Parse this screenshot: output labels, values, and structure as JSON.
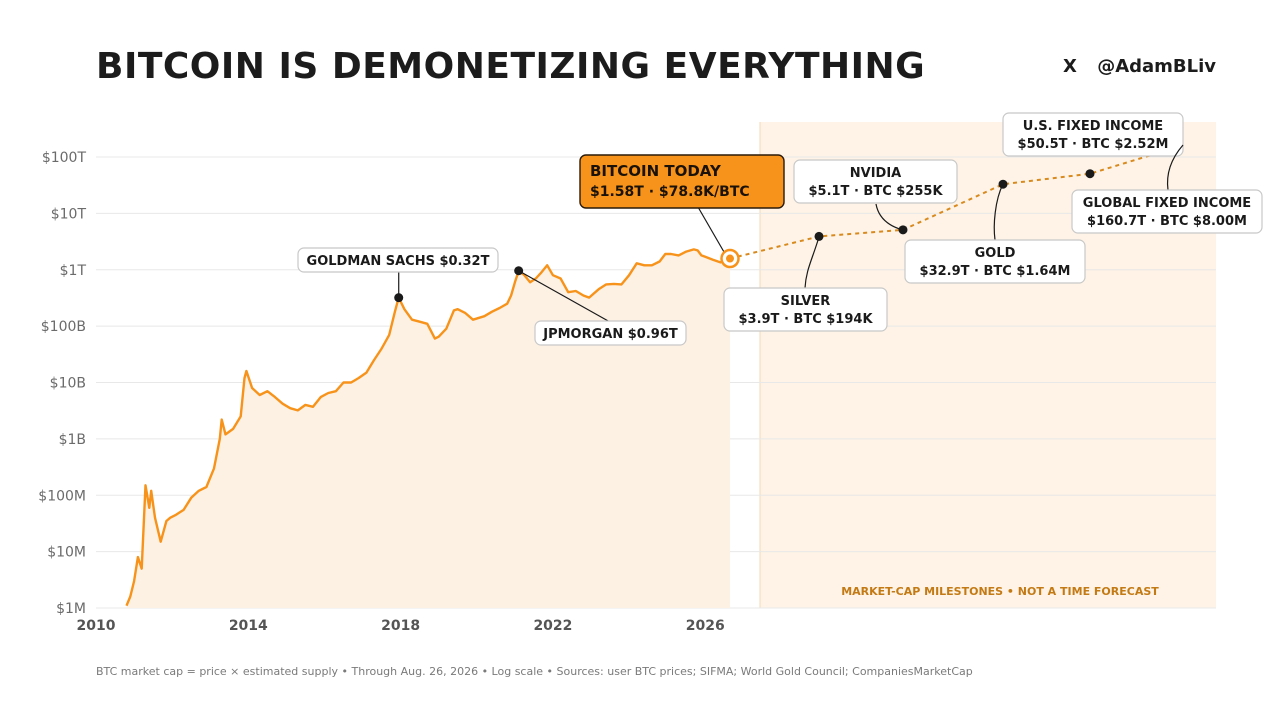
{
  "header": {
    "title": "BITCOIN IS DEMONETIZING EVERYTHING",
    "handle_icon": "X",
    "handle": "@AdamBLiv"
  },
  "footnote": "BTC market cap = price × estimated supply  •  Through Aug. 26, 2026  •  Log scale  •  Sources: user BTC prices; SIFMA; World Gold Council; CompaniesMarketCap",
  "colors": {
    "bitcoin": "#f7931a",
    "area_fill": "#fdf1e4",
    "milestone_panel": "#fef3e6",
    "milestone_text": "#c47a14",
    "grid": "#e8e8e8",
    "axis_text": "#6b6b6b"
  },
  "chart_data": {
    "type": "line",
    "scale": "log",
    "y_ticks": [
      {
        "value": 1000000.0,
        "label": "$1M"
      },
      {
        "value": 10000000.0,
        "label": "$10M"
      },
      {
        "value": 100000000.0,
        "label": "$100M"
      },
      {
        "value": 1000000000.0,
        "label": "$1B"
      },
      {
        "value": 10000000000.0,
        "label": "$10B"
      },
      {
        "value": 100000000000.0,
        "label": "$100B"
      },
      {
        "value": 1000000000000.0,
        "label": "$1T"
      },
      {
        "value": 10000000000000.0,
        "label": "$10T"
      },
      {
        "value": 100000000000000.0,
        "label": "$100T"
      }
    ],
    "x_ticks": [
      {
        "value": 2010,
        "label": "2010"
      },
      {
        "value": 2014,
        "label": "2014"
      },
      {
        "value": 2018,
        "label": "2018"
      },
      {
        "value": 2022,
        "label": "2022"
      },
      {
        "value": 2026,
        "label": "2026"
      }
    ],
    "xlim": [
      2010,
      2026.65
    ],
    "ylim": [
      1000000.0,
      100000000000000.0
    ],
    "grid": true,
    "series": [
      {
        "name": "BTC market cap",
        "x": [
          2010.8,
          2010.9,
          2011.0,
          2011.1,
          2011.2,
          2011.3,
          2011.4,
          2011.45,
          2011.55,
          2011.7,
          2011.85,
          2011.95,
          2012.1,
          2012.3,
          2012.5,
          2012.7,
          2012.9,
          2013.1,
          2013.25,
          2013.3,
          2013.4,
          2013.6,
          2013.8,
          2013.9,
          2013.95,
          2014.1,
          2014.3,
          2014.5,
          2014.7,
          2014.9,
          2015.1,
          2015.3,
          2015.5,
          2015.7,
          2015.9,
          2016.1,
          2016.3,
          2016.5,
          2016.7,
          2016.9,
          2017.1,
          2017.3,
          2017.5,
          2017.7,
          2017.85,
          2017.95,
          2018.1,
          2018.3,
          2018.5,
          2018.7,
          2018.9,
          2019.0,
          2019.2,
          2019.4,
          2019.5,
          2019.7,
          2019.9,
          2020.2,
          2020.4,
          2020.6,
          2020.8,
          2020.9,
          2021.0,
          2021.1,
          2021.25,
          2021.4,
          2021.55,
          2021.7,
          2021.85,
          2022.0,
          2022.2,
          2022.4,
          2022.6,
          2022.8,
          2022.95,
          2023.2,
          2023.4,
          2023.6,
          2023.8,
          2024.0,
          2024.2,
          2024.4,
          2024.6,
          2024.8,
          2024.95,
          2025.1,
          2025.3,
          2025.5,
          2025.7,
          2025.8,
          2025.9,
          2026.0,
          2026.2,
          2026.4,
          2026.55,
          2026.65
        ],
        "values": [
          1100000.0,
          1600000.0,
          3000000.0,
          8000000.0,
          5000000.0,
          150000000.0,
          60000000.0,
          120000000.0,
          40000000.0,
          15000000.0,
          35000000.0,
          40000000.0,
          45000000.0,
          55000000.0,
          90000000.0,
          120000000.0,
          140000000.0,
          300000000.0,
          1000000000.0,
          2200000000.0,
          1200000000.0,
          1500000000.0,
          2500000000.0,
          12000000000.0,
          16000000000.0,
          8000000000.0,
          6000000000.0,
          7000000000.0,
          5500000000.0,
          4200000000.0,
          3500000000.0,
          3200000000.0,
          4000000000.0,
          3700000000.0,
          5500000000.0,
          6500000000.0,
          7000000000.0,
          10000000000.0,
          10000000000.0,
          12000000000.0,
          15000000000.0,
          25000000000.0,
          40000000000.0,
          70000000000.0,
          180000000000.0,
          320000000000.0,
          200000000000.0,
          130000000000.0,
          120000000000.0,
          110000000000.0,
          60000000000.0,
          65000000000.0,
          90000000000.0,
          190000000000.0,
          200000000000.0,
          170000000000.0,
          130000000000.0,
          150000000000.0,
          180000000000.0,
          210000000000.0,
          250000000000.0,
          350000000000.0,
          600000000000.0,
          960000000000.0,
          800000000000.0,
          600000000000.0,
          700000000000.0,
          900000000000.0,
          1200000000000.0,
          800000000000.0,
          700000000000.0,
          400000000000.0,
          420000000000.0,
          350000000000.0,
          320000000000.0,
          450000000000.0,
          550000000000.0,
          560000000000.0,
          550000000000.0,
          800000000000.0,
          1300000000000.0,
          1200000000000.0,
          1200000000000.0,
          1400000000000.0,
          1900000000000.0,
          1900000000000.0,
          1800000000000.0,
          2100000000000.0,
          2300000000000.0,
          2200000000000.0,
          1800000000000.0,
          1700000000000.0,
          1500000000000.0,
          1350000000000.0,
          1500000000000.0,
          1580000000000.0
        ]
      }
    ],
    "milestones_label": "MARKET-CAP MILESTONES  •  NOT A TIME FORECAST",
    "milestones": [
      {
        "name": "SILVER",
        "market_cap": 3900000000000.0,
        "detail": "$3.9T  ·  BTC $194K"
      },
      {
        "name": "NVIDIA",
        "market_cap": 5100000000000.0,
        "detail": "$5.1T  ·  BTC $255K"
      },
      {
        "name": "GOLD",
        "market_cap": 32900000000000.0,
        "detail": "$32.9T  ·  BTC $1.64M"
      },
      {
        "name": "U.S. FIXED INCOME",
        "market_cap": 50500000000000.0,
        "detail": "$50.5T  ·  BTC $2.52M"
      },
      {
        "name": "GLOBAL FIXED INCOME",
        "market_cap": 160700000000000.0,
        "detail": "$160.7T  ·  BTC $8.00M"
      }
    ],
    "annotations": [
      {
        "label": "GOLDMAN SACHS  $0.32T",
        "x": 2017.95,
        "value": 320000000000.0
      },
      {
        "label": "JPMORGAN  $0.96T",
        "x": 2021.1,
        "value": 960000000000.0
      }
    ],
    "today": {
      "title": "BITCOIN TODAY",
      "detail": "$1.58T  ·  $78.8K/BTC",
      "x": 2026.65,
      "value": 1580000000000.0
    }
  }
}
